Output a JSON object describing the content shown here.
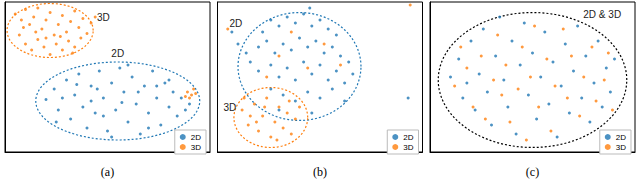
{
  "chart_data": [
    {
      "type": "scatter",
      "xlabel": "(a)",
      "xlim": [
        0,
        100
      ],
      "ylim": [
        0,
        100
      ],
      "tick_labels": false,
      "grid": false,
      "legend": "lower right",
      "series": [
        {
          "name": "2D",
          "color": "#1f77b4",
          "marker": "circle",
          "values": [
            [
              20,
              35
            ],
            [
              24,
              42
            ],
            [
              26,
              28
            ],
            [
              30,
              48
            ],
            [
              32,
              22
            ],
            [
              34,
              38
            ],
            [
              36,
              52
            ],
            [
              38,
              30
            ],
            [
              40,
              16
            ],
            [
              42,
              44
            ],
            [
              44,
              26
            ],
            [
              46,
              54
            ],
            [
              48,
              36
            ],
            [
              50,
              14
            ],
            [
              52,
              46
            ],
            [
              54,
              28
            ],
            [
              56,
              56
            ],
            [
              58,
              40
            ],
            [
              60,
              20
            ],
            [
              62,
              50
            ],
            [
              64,
              32
            ],
            [
              66,
              12
            ],
            [
              68,
              44
            ],
            [
              70,
              26
            ],
            [
              72,
              54
            ],
            [
              74,
              36
            ],
            [
              76,
              18
            ],
            [
              78,
              46
            ],
            [
              80,
              30
            ],
            [
              82,
              40
            ],
            [
              84,
              24
            ],
            [
              86,
              36
            ],
            [
              90,
              32
            ],
            [
              28,
              36
            ],
            [
              45,
              42
            ],
            [
              57,
              33
            ],
            [
              65,
              40
            ],
            [
              70,
              16
            ],
            [
              48,
              24
            ],
            [
              35,
              45
            ],
            [
              60,
              58
            ],
            [
              80,
              48
            ],
            [
              25,
              20
            ],
            [
              52,
              10
            ],
            [
              88,
              28
            ],
            [
              42,
              34
            ],
            [
              74,
              44
            ]
          ]
        },
        {
          "name": "3D",
          "color": "#ff7f0e",
          "marker": "circle",
          "values": [
            [
              5,
              92
            ],
            [
              8,
              88
            ],
            [
              10,
              95
            ],
            [
              12,
              85
            ],
            [
              14,
              90
            ],
            [
              16,
              96
            ],
            [
              18,
              82
            ],
            [
              20,
              88
            ],
            [
              22,
              93
            ],
            [
              24,
              78
            ],
            [
              26,
              85
            ],
            [
              28,
              91
            ],
            [
              30,
              80
            ],
            [
              32,
              87
            ],
            [
              34,
              94
            ],
            [
              36,
              83
            ],
            [
              38,
              89
            ],
            [
              40,
              79
            ],
            [
              7,
              78
            ],
            [
              10,
              72
            ],
            [
              13,
              68
            ],
            [
              16,
              75
            ],
            [
              19,
              70
            ],
            [
              22,
              65
            ],
            [
              25,
              72
            ],
            [
              28,
              68
            ],
            [
              31,
              74
            ],
            [
              34,
              70
            ],
            [
              37,
              76
            ],
            [
              42,
              86
            ],
            [
              15,
              80
            ],
            [
              27,
              77
            ],
            [
              9,
              83
            ],
            [
              33,
              66
            ],
            [
              20,
              76
            ],
            [
              44,
              90
            ],
            [
              89,
              40
            ],
            [
              91,
              38
            ],
            [
              92,
              42
            ],
            [
              90,
              36
            ],
            [
              93,
              39
            ],
            [
              88,
              37
            ]
          ]
        }
      ],
      "ellipses": [
        {
          "cx": 22,
          "cy": 81,
          "rx": 21,
          "ry": 18,
          "color": "#ff7f0e"
        },
        {
          "cx": 55,
          "cy": 34,
          "rx": 40,
          "ry": 26,
          "color": "#1f77b4"
        }
      ],
      "annotations": [
        {
          "text": "3D",
          "x": 48,
          "y": 90
        },
        {
          "text": "2D",
          "x": 55,
          "y": 66
        }
      ]
    },
    {
      "type": "scatter",
      "xlabel": "(b)",
      "xlim": [
        0,
        100
      ],
      "ylim": [
        0,
        100
      ],
      "tick_labels": false,
      "grid": false,
      "legend": "lower right",
      "series": [
        {
          "name": "2D",
          "color": "#1f77b4",
          "marker": "circle",
          "values": [
            [
              22,
              80
            ],
            [
              26,
              88
            ],
            [
              30,
              84
            ],
            [
              34,
              90
            ],
            [
              38,
              86
            ],
            [
              42,
              92
            ],
            [
              46,
              84
            ],
            [
              50,
              88
            ],
            [
              54,
              82
            ],
            [
              58,
              78
            ],
            [
              20,
              70
            ],
            [
              24,
              74
            ],
            [
              28,
              66
            ],
            [
              32,
              72
            ],
            [
              36,
              68
            ],
            [
              40,
              76
            ],
            [
              44,
              70
            ],
            [
              48,
              74
            ],
            [
              52,
              66
            ],
            [
              56,
              70
            ],
            [
              60,
              64
            ],
            [
              64,
              60
            ],
            [
              16,
              60
            ],
            [
              20,
              54
            ],
            [
              26,
              58
            ],
            [
              30,
              50
            ],
            [
              34,
              56
            ],
            [
              38,
              48
            ],
            [
              42,
              60
            ],
            [
              46,
              52
            ],
            [
              50,
              58
            ],
            [
              54,
              48
            ],
            [
              58,
              54
            ],
            [
              62,
              46
            ],
            [
              66,
              52
            ],
            [
              26,
              42
            ],
            [
              32,
              38
            ],
            [
              38,
              34
            ],
            [
              44,
              40
            ],
            [
              50,
              36
            ],
            [
              56,
              42
            ],
            [
              62,
              34
            ],
            [
              30,
              28
            ],
            [
              46,
              26
            ],
            [
              14,
              66
            ],
            [
              10,
              72
            ],
            [
              93,
              36
            ],
            [
              7,
              80
            ],
            [
              45,
              96
            ]
          ]
        },
        {
          "name": "3D",
          "color": "#ff7f0e",
          "marker": "circle",
          "values": [
            [
              12,
              28
            ],
            [
              15,
              18
            ],
            [
              18,
              32
            ],
            [
              20,
              14
            ],
            [
              22,
              24
            ],
            [
              24,
              36
            ],
            [
              26,
              10
            ],
            [
              28,
              20
            ],
            [
              30,
              30
            ],
            [
              32,
              16
            ],
            [
              34,
              26
            ],
            [
              36,
              12
            ],
            [
              38,
              22
            ],
            [
              16,
              24
            ],
            [
              23,
              30
            ],
            [
              29,
              8
            ],
            [
              35,
              34
            ],
            [
              13,
              36
            ],
            [
              40,
              30
            ],
            [
              19,
              20
            ],
            [
              30,
              64
            ],
            [
              44,
              56
            ],
            [
              36,
              80
            ],
            [
              52,
              72
            ],
            [
              24,
              50
            ],
            [
              60,
              58
            ],
            [
              5,
              82
            ],
            [
              94,
              98
            ]
          ]
        }
      ],
      "ellipses": [
        {
          "cx": 40,
          "cy": 57,
          "rx": 30,
          "ry": 36,
          "color": "#1f77b4"
        },
        {
          "cx": 26,
          "cy": 23,
          "rx": 18,
          "ry": 20,
          "color": "#ff7f0e"
        }
      ],
      "annotations": [
        {
          "text": "2D",
          "x": 9,
          "y": 86
        },
        {
          "text": "3D",
          "x": 6,
          "y": 30
        }
      ]
    },
    {
      "type": "scatter",
      "xlabel": "(c)",
      "xlim": [
        0,
        100
      ],
      "ylim": [
        0,
        100
      ],
      "tick_labels": false,
      "grid": false,
      "legend": "lower right",
      "series": [
        {
          "name": "2D",
          "color": "#1f77b4",
          "marker": "circle",
          "values": [
            [
              10,
              50
            ],
            [
              14,
              62
            ],
            [
              16,
              36
            ],
            [
              20,
              74
            ],
            [
              22,
              28
            ],
            [
              24,
              52
            ],
            [
              26,
              82
            ],
            [
              28,
              40
            ],
            [
              30,
              18
            ],
            [
              32,
              64
            ],
            [
              34,
              90
            ],
            [
              36,
              48
            ],
            [
              38,
              30
            ],
            [
              40,
              74
            ],
            [
              42,
              12
            ],
            [
              44,
              58
            ],
            [
              46,
              86
            ],
            [
              48,
              38
            ],
            [
              50,
              66
            ],
            [
              52,
              22
            ],
            [
              54,
              50
            ],
            [
              56,
              80
            ],
            [
              58,
              32
            ],
            [
              60,
              60
            ],
            [
              62,
              10
            ],
            [
              64,
              44
            ],
            [
              66,
              72
            ],
            [
              68,
              26
            ],
            [
              70,
              54
            ],
            [
              72,
              84
            ],
            [
              74,
              36
            ],
            [
              76,
              64
            ],
            [
              78,
              20
            ],
            [
              80,
              46
            ],
            [
              82,
              74
            ],
            [
              84,
              30
            ],
            [
              86,
              56
            ],
            [
              88,
              40
            ],
            [
              90,
              62
            ],
            [
              18,
              46
            ]
          ]
        },
        {
          "name": "3D",
          "color": "#ff7f0e",
          "marker": "circle",
          "values": [
            [
              12,
              44
            ],
            [
              15,
              70
            ],
            [
              18,
              56
            ],
            [
              21,
              30
            ],
            [
              25,
              64
            ],
            [
              27,
              22
            ],
            [
              31,
              48
            ],
            [
              33,
              78
            ],
            [
              37,
              58
            ],
            [
              39,
              20
            ],
            [
              43,
              42
            ],
            [
              45,
              70
            ],
            [
              49,
              50
            ],
            [
              51,
              84
            ],
            [
              53,
              30
            ],
            [
              57,
              62
            ],
            [
              59,
              14
            ],
            [
              61,
              44
            ],
            [
              65,
              82
            ],
            [
              67,
              36
            ],
            [
              69,
              64
            ],
            [
              73,
              24
            ],
            [
              75,
              50
            ],
            [
              79,
              70
            ],
            [
              81,
              34
            ],
            [
              85,
              48
            ],
            [
              87,
              66
            ],
            [
              89,
              28
            ],
            [
              47,
              8
            ],
            [
              35,
              38
            ]
          ]
        }
      ],
      "ellipses": [
        {
          "cx": 50,
          "cy": 48,
          "rx": 46,
          "ry": 45,
          "color": "#000000"
        }
      ],
      "annotations": [
        {
          "text": "2D & 3D",
          "x": 84,
          "y": 92
        }
      ]
    }
  ]
}
